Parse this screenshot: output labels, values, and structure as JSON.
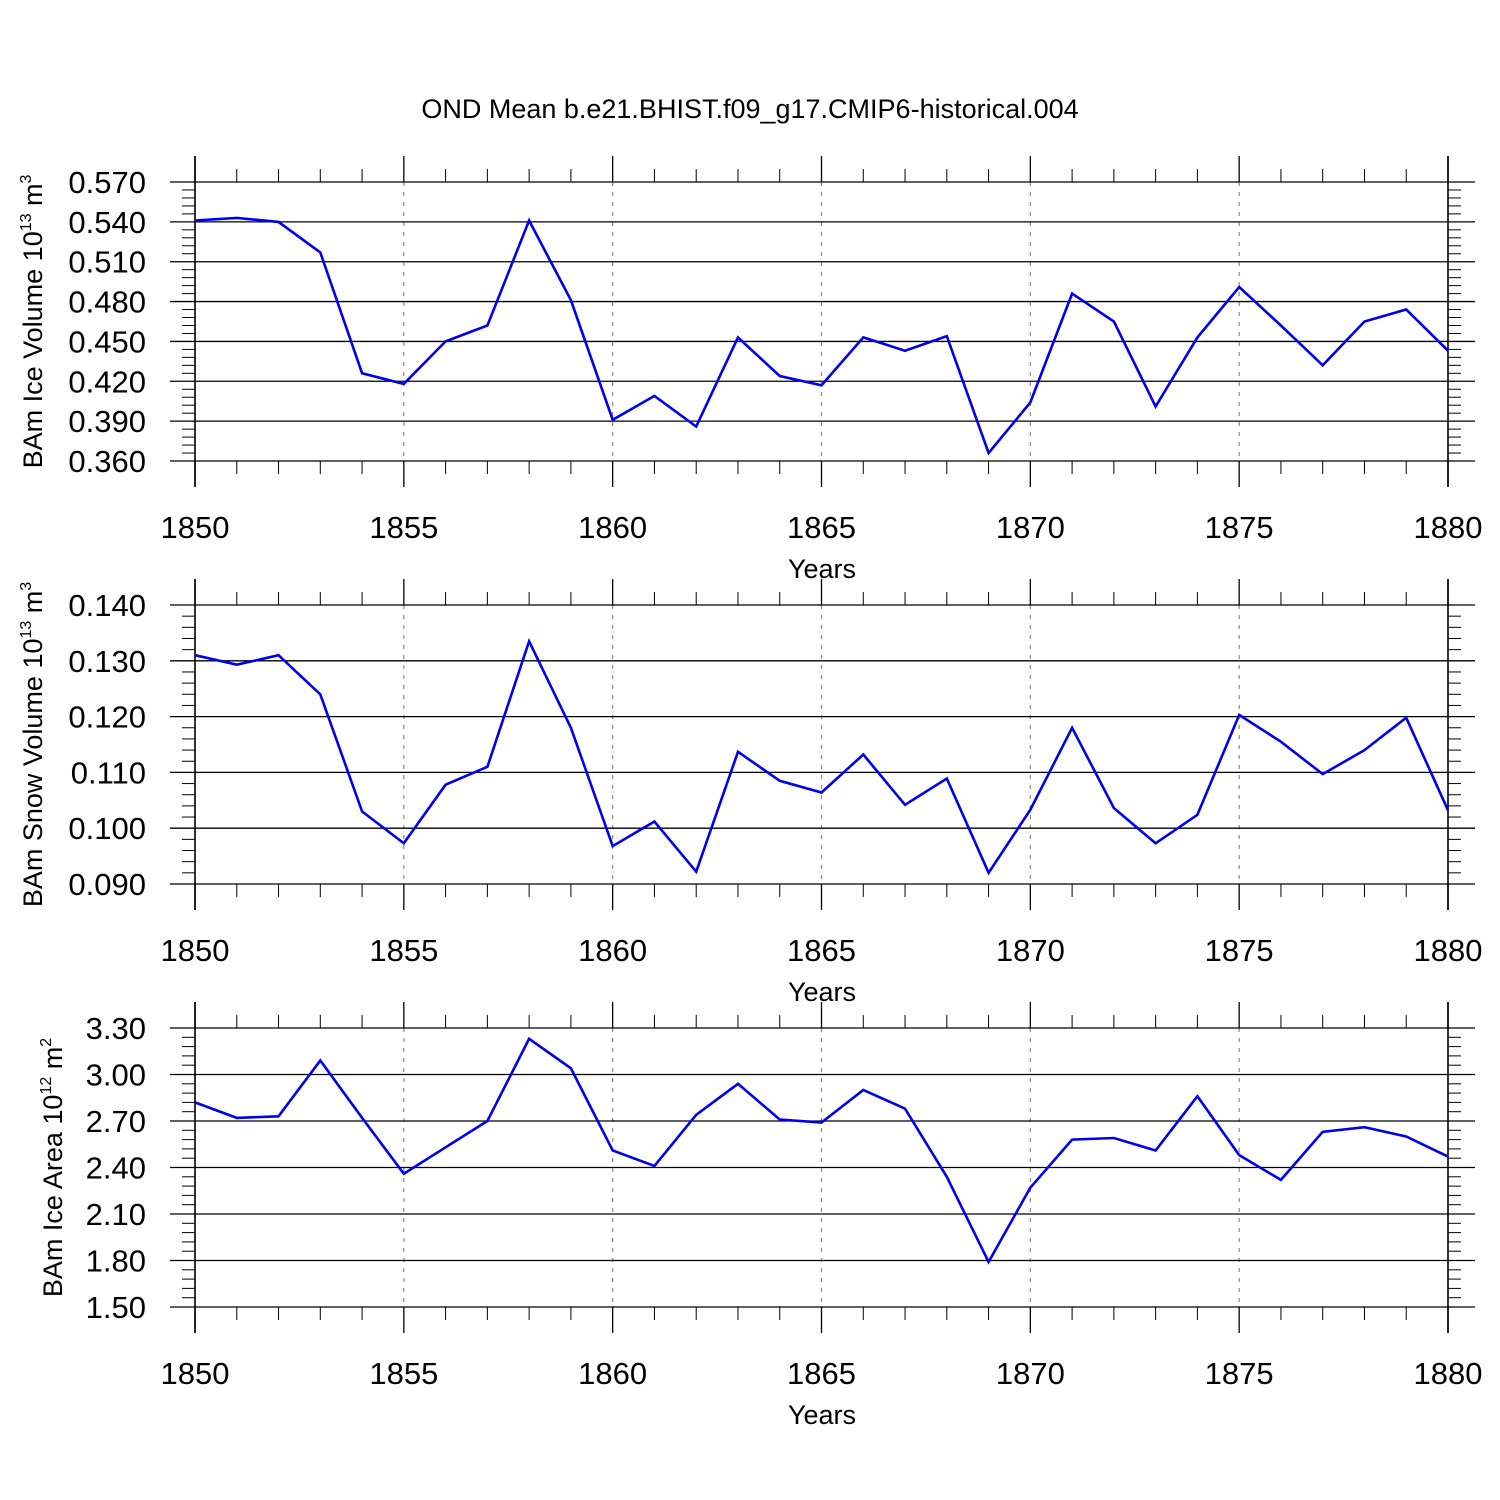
{
  "chart_data": {
    "title": "OND Mean b.e21.BHIST.f09_g17.CMIP6-historical.004",
    "line_color": "#0000ee",
    "grid_color": "#888888",
    "panels": [
      {
        "type": "line",
        "ylabel_main": "BAm Ice Volume 10",
        "ylabel_exp": "13",
        "ylabel_unit": " m",
        "ylabel_unit_exp": "3",
        "xlabel": "Years",
        "xlim": [
          1850,
          1880
        ],
        "ylim": [
          0.36,
          0.57
        ],
        "yticks": [
          0.36,
          0.39,
          0.42,
          0.45,
          0.48,
          0.51,
          0.54,
          0.57
        ],
        "ytick_labels": [
          "0.360",
          "0.390",
          "0.420",
          "0.450",
          "0.480",
          "0.510",
          "0.540",
          "0.570"
        ],
        "xticks": [
          1850,
          1855,
          1860,
          1865,
          1870,
          1875,
          1880
        ],
        "xtick_labels": [
          "1850",
          "1855",
          "1860",
          "1865",
          "1870",
          "1875",
          "1880"
        ],
        "x": [
          1850,
          1851,
          1852,
          1853,
          1854,
          1855,
          1856,
          1857,
          1858,
          1859,
          1860,
          1861,
          1862,
          1863,
          1864,
          1865,
          1866,
          1867,
          1868,
          1869,
          1870,
          1871,
          1872,
          1873,
          1874,
          1875,
          1876,
          1877,
          1878,
          1879,
          1880
        ],
        "values": [
          0.541,
          0.543,
          0.54,
          0.517,
          0.426,
          0.418,
          0.45,
          0.462,
          0.541,
          0.481,
          0.391,
          0.409,
          0.386,
          0.453,
          0.424,
          0.417,
          0.453,
          0.443,
          0.454,
          0.366,
          0.404,
          0.486,
          0.465,
          0.401,
          0.453,
          0.491,
          0.462,
          0.432,
          0.465,
          0.474,
          0.443
        ]
      },
      {
        "type": "line",
        "ylabel_main": "BAm Snow Volume 10",
        "ylabel_exp": "13",
        "ylabel_unit": " m",
        "ylabel_unit_exp": "3",
        "xlabel": "Years",
        "xlim": [
          1850,
          1880
        ],
        "ylim": [
          0.09,
          0.14
        ],
        "yticks": [
          0.09,
          0.1,
          0.11,
          0.12,
          0.13,
          0.14
        ],
        "ytick_labels": [
          "0.090",
          "0.100",
          "0.110",
          "0.120",
          "0.130",
          "0.140"
        ],
        "xticks": [
          1850,
          1855,
          1860,
          1865,
          1870,
          1875,
          1880
        ],
        "xtick_labels": [
          "1850",
          "1855",
          "1860",
          "1865",
          "1870",
          "1875",
          "1880"
        ],
        "x": [
          1850,
          1851,
          1852,
          1853,
          1854,
          1855,
          1856,
          1857,
          1858,
          1859,
          1860,
          1861,
          1862,
          1863,
          1864,
          1865,
          1866,
          1867,
          1868,
          1869,
          1870,
          1871,
          1872,
          1873,
          1874,
          1875,
          1876,
          1877,
          1878,
          1879,
          1880
        ],
        "values": [
          0.131,
          0.1293,
          0.131,
          0.124,
          0.103,
          0.0973,
          0.1078,
          0.111,
          0.1335,
          0.118,
          0.0968,
          0.1012,
          0.0922,
          0.1137,
          0.1085,
          0.1064,
          0.1132,
          0.1042,
          0.1089,
          0.092,
          0.1033,
          0.118,
          0.1036,
          0.0973,
          0.1024,
          0.1203,
          0.1155,
          0.1097,
          0.114,
          0.1198,
          0.1032
        ]
      },
      {
        "type": "line",
        "ylabel_main": "BAm Ice Area 10",
        "ylabel_exp": "12",
        "ylabel_unit": " m",
        "ylabel_unit_exp": "2",
        "xlabel": "Years",
        "xlim": [
          1850,
          1880
        ],
        "ylim": [
          1.5,
          3.3
        ],
        "yticks": [
          1.5,
          1.8,
          2.1,
          2.4,
          2.7,
          3.0,
          3.3
        ],
        "ytick_labels": [
          "1.50",
          "1.80",
          "2.10",
          "2.40",
          "2.70",
          "3.00",
          "3.30"
        ],
        "xticks": [
          1850,
          1855,
          1860,
          1865,
          1870,
          1875,
          1880
        ],
        "xtick_labels": [
          "1850",
          "1855",
          "1860",
          "1865",
          "1870",
          "1875",
          "1880"
        ],
        "x": [
          1850,
          1851,
          1852,
          1853,
          1854,
          1855,
          1856,
          1857,
          1858,
          1859,
          1860,
          1861,
          1862,
          1863,
          1864,
          1865,
          1866,
          1867,
          1868,
          1869,
          1870,
          1871,
          1872,
          1873,
          1874,
          1875,
          1876,
          1877,
          1878,
          1879,
          1880
        ],
        "values": [
          2.82,
          2.72,
          2.73,
          3.09,
          2.72,
          2.36,
          2.53,
          2.7,
          3.23,
          3.04,
          2.51,
          2.41,
          2.74,
          2.94,
          2.71,
          2.69,
          2.9,
          2.78,
          2.34,
          1.79,
          2.27,
          2.58,
          2.59,
          2.51,
          2.86,
          2.48,
          2.32,
          2.63,
          2.66,
          2.6,
          2.47
        ]
      }
    ]
  }
}
